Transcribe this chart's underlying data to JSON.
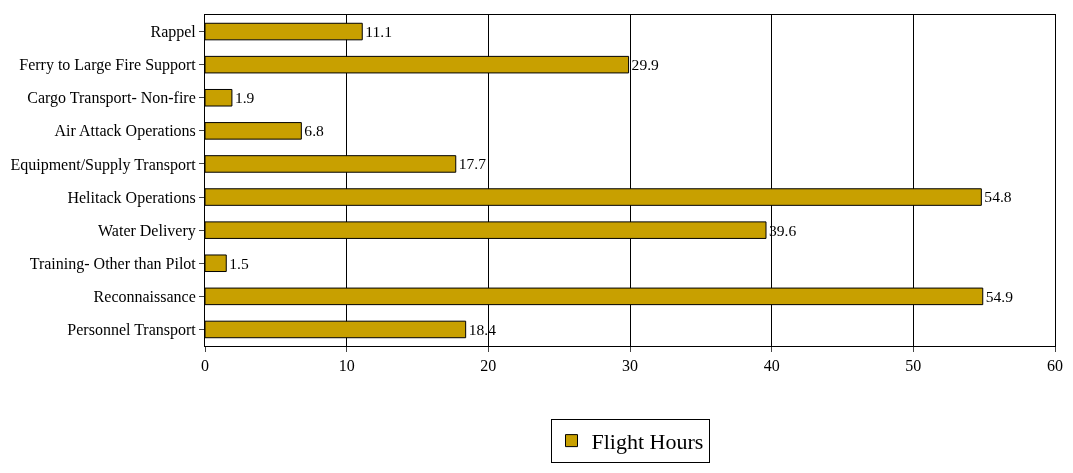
{
  "chart_data": {
    "type": "bar",
    "orientation": "horizontal",
    "categories": [
      "Rappel",
      "Ferry to Large Fire Support",
      "Cargo Transport- Non-fire",
      "Air Attack Operations",
      "Equipment/Supply Transport",
      "Helitack Operations",
      "Water Delivery",
      "Training- Other than Pilot",
      "Reconnaissance",
      "Personnel Transport"
    ],
    "series": [
      {
        "name": "Flight Hours",
        "color": "#c8a000",
        "values": [
          11.1,
          29.9,
          1.9,
          6.8,
          17.7,
          54.8,
          39.6,
          1.5,
          54.9,
          18.4
        ]
      }
    ],
    "xlim": [
      0,
      60
    ],
    "xticks": [
      0,
      10,
      20,
      30,
      40,
      50,
      60
    ],
    "grid": "x",
    "legend": "bottom",
    "data_labels": true
  }
}
